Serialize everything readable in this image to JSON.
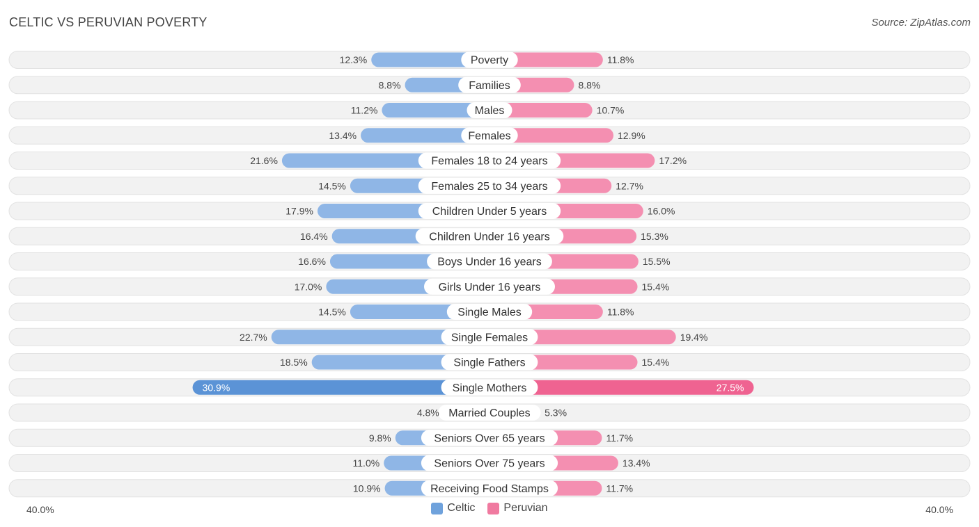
{
  "header": {
    "title": "CELTIC VS PERUVIAN POVERTY",
    "source": "Source: ZipAtlas.com"
  },
  "colors": {
    "celtic": "#6fa2dc",
    "celtic_light": "#a9c8ec",
    "peruvian": "#f07aa0",
    "peruvian_light": "#f6aac3",
    "row_bg": "#f0f0f0"
  },
  "chart_data": {
    "type": "bar",
    "orientation": "horizontal-diverging",
    "title": "CELTIC VS PERUVIAN POVERTY",
    "axis_max": 40.0,
    "axis_left_label": "40.0%",
    "axis_right_label": "40.0%",
    "legend": [
      "Celtic",
      "Peruvian"
    ],
    "categories": [
      "Poverty",
      "Families",
      "Males",
      "Females",
      "Females 18 to 24 years",
      "Females 25 to 34 years",
      "Children Under 5 years",
      "Children Under 16 years",
      "Boys Under 16 years",
      "Girls Under 16 years",
      "Single Males",
      "Single Females",
      "Single Fathers",
      "Single Mothers",
      "Married Couples",
      "Seniors Over 65 years",
      "Seniors Over 75 years",
      "Receiving Food Stamps"
    ],
    "series": [
      {
        "name": "Celtic",
        "values": [
          12.3,
          8.8,
          11.2,
          13.4,
          21.6,
          14.5,
          17.9,
          16.4,
          16.6,
          17.0,
          14.5,
          22.7,
          18.5,
          30.9,
          4.8,
          9.8,
          11.0,
          10.9
        ],
        "labels": [
          "12.3%",
          "8.8%",
          "11.2%",
          "13.4%",
          "21.6%",
          "14.5%",
          "17.9%",
          "16.4%",
          "16.6%",
          "17.0%",
          "14.5%",
          "22.7%",
          "18.5%",
          "30.9%",
          "4.8%",
          "9.8%",
          "11.0%",
          "10.9%"
        ]
      },
      {
        "name": "Peruvian",
        "values": [
          11.8,
          8.8,
          10.7,
          12.9,
          17.2,
          12.7,
          16.0,
          15.3,
          15.5,
          15.4,
          11.8,
          19.4,
          15.4,
          27.5,
          5.3,
          11.7,
          13.4,
          11.7
        ],
        "labels": [
          "11.8%",
          "8.8%",
          "10.7%",
          "12.9%",
          "17.2%",
          "12.7%",
          "16.0%",
          "15.3%",
          "15.5%",
          "15.4%",
          "11.8%",
          "19.4%",
          "15.4%",
          "27.5%",
          "5.3%",
          "11.7%",
          "13.4%",
          "11.7%"
        ]
      }
    ]
  }
}
